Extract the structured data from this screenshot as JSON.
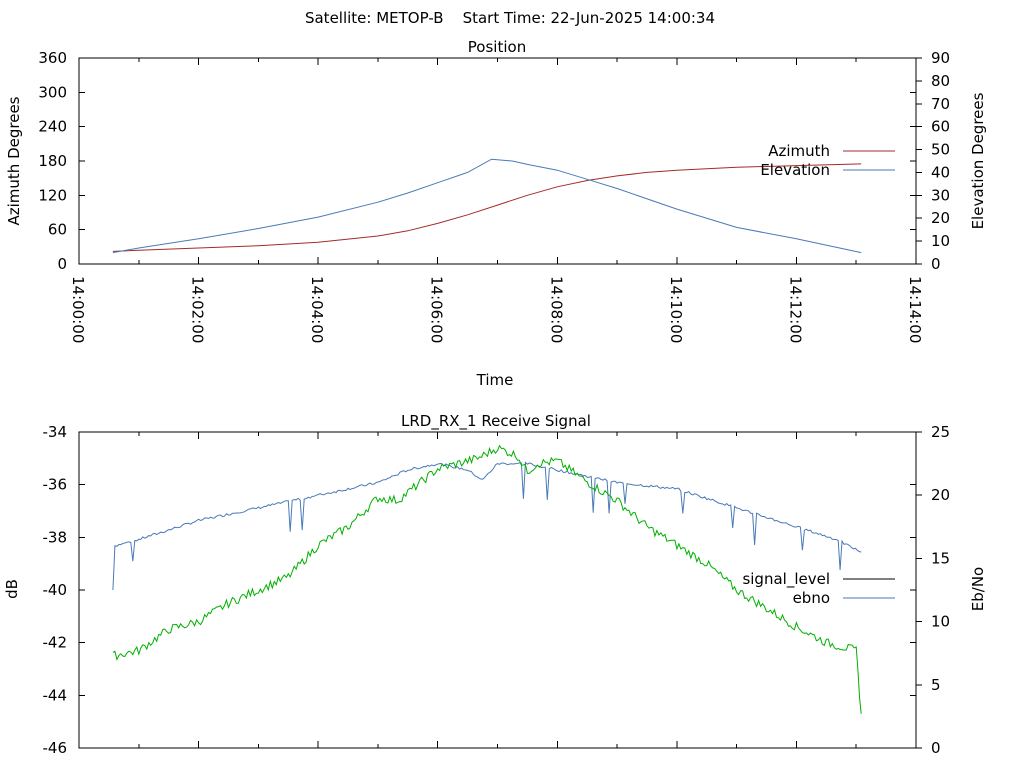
{
  "title": "Satellite: METOP-B    Start Time: 22-Jun-2025 14:00:34",
  "chart_data": [
    {
      "type": "line",
      "title": "Position",
      "xlabel": "Time",
      "ylabel": "Azimuth Degrees",
      "y2label": "Elevation Degrees",
      "xlim": [
        "14:00:00",
        "14:14:00"
      ],
      "xticks": [
        "14:00:00",
        "14:02:00",
        "14:04:00",
        "14:06:00",
        "14:08:00",
        "14:10:00",
        "14:12:00",
        "14:14:00"
      ],
      "ylim": [
        0,
        360
      ],
      "yticks": [
        0,
        60,
        120,
        180,
        240,
        300,
        360
      ],
      "y2lim": [
        0,
        90
      ],
      "y2ticks": [
        0,
        10,
        20,
        30,
        40,
        50,
        60,
        70,
        80,
        90
      ],
      "legend_position": "right",
      "series": [
        {
          "name": "Azimuth",
          "axis": "left",
          "color": "#a52a2a",
          "x": [
            "14:00:34",
            "14:01:00",
            "14:02:00",
            "14:03:00",
            "14:04:00",
            "14:05:00",
            "14:05:30",
            "14:06:00",
            "14:06:30",
            "14:07:00",
            "14:07:30",
            "14:08:00",
            "14:08:30",
            "14:09:00",
            "14:09:30",
            "14:10:00",
            "14:11:00",
            "14:12:00",
            "14:13:05"
          ],
          "y": [
            22,
            24,
            28,
            32,
            38,
            49,
            58,
            71,
            86,
            103,
            120,
            135,
            146,
            154,
            160,
            164,
            169,
            172,
            175
          ]
        },
        {
          "name": "Elevation",
          "axis": "right",
          "color": "#4a7ab8",
          "x": [
            "14:00:34",
            "14:01:00",
            "14:02:00",
            "14:03:00",
            "14:04:00",
            "14:05:00",
            "14:05:30",
            "14:06:00",
            "14:06:30",
            "14:06:54",
            "14:07:15",
            "14:07:30",
            "14:08:00",
            "14:08:30",
            "14:09:00",
            "14:10:00",
            "14:11:00",
            "14:12:00",
            "14:13:05"
          ],
          "y": [
            5,
            7,
            11,
            15.5,
            20.5,
            27,
            31,
            35.5,
            40,
            45.8,
            45,
            43.5,
            41,
            37,
            33,
            24,
            16,
            11,
            5
          ]
        }
      ]
    },
    {
      "type": "line",
      "title": "LRD_RX_1 Receive Signal",
      "xlabel": "",
      "ylabel": "dB",
      "y2label": "Eb/No",
      "xlim": [
        "14:00:00",
        "14:14:00"
      ],
      "ylim": [
        -46,
        -34
      ],
      "yticks": [
        -46,
        -44,
        -42,
        -40,
        -38,
        -36,
        -34
      ],
      "y2lim": [
        0,
        25
      ],
      "y2ticks": [
        0,
        5,
        10,
        15,
        20,
        25
      ],
      "legend_position": "right",
      "series": [
        {
          "name": "signal_level",
          "axis": "left",
          "color": "#000000",
          "x": [],
          "y": []
        },
        {
          "name": "ebno",
          "axis": "right",
          "color": "#4a7ab8",
          "x": [
            "14:00:34",
            "14:00:36",
            "14:01:00",
            "14:02:00",
            "14:03:00",
            "14:04:00",
            "14:05:00",
            "14:05:30",
            "14:06:00",
            "14:06:30",
            "14:06:45",
            "14:07:00",
            "14:07:30",
            "14:08:00",
            "14:08:30",
            "14:09:00",
            "14:10:00",
            "14:11:00",
            "14:12:00",
            "14:12:40",
            "14:13:05"
          ],
          "y": [
            12.5,
            16,
            16.5,
            18,
            19,
            20,
            21,
            22,
            22.5,
            22,
            21.2,
            22.5,
            22.5,
            22,
            21.5,
            21,
            20.5,
            19,
            17.5,
            16.5,
            15.5
          ]
        },
        {
          "name": "",
          "axis": "left",
          "color": "#00b000",
          "x": [
            "14:00:34",
            "14:01:00",
            "14:01:30",
            "14:02:00",
            "14:02:30",
            "14:03:00",
            "14:03:30",
            "14:04:00",
            "14:04:30",
            "14:05:00",
            "14:05:20",
            "14:05:40",
            "14:06:00",
            "14:06:20",
            "14:06:40",
            "14:07:00",
            "14:07:20",
            "14:07:30",
            "14:07:40",
            "14:08:00",
            "14:08:30",
            "14:09:00",
            "14:09:30",
            "14:10:00",
            "14:10:30",
            "14:11:00",
            "14:11:30",
            "14:12:00",
            "14:12:30",
            "14:13:00",
            "14:13:05"
          ],
          "y": [
            -42.5,
            -42.3,
            -41.5,
            -41.2,
            -40.5,
            -40,
            -39.5,
            -38.3,
            -37.6,
            -36.5,
            -36.6,
            -36,
            -35.4,
            -35.2,
            -35,
            -34.6,
            -34.9,
            -35.5,
            -35.2,
            -35.1,
            -35.9,
            -36.6,
            -37.6,
            -38.3,
            -39,
            -40,
            -40.7,
            -41.4,
            -42,
            -42.3,
            -44.7
          ]
        }
      ]
    }
  ]
}
